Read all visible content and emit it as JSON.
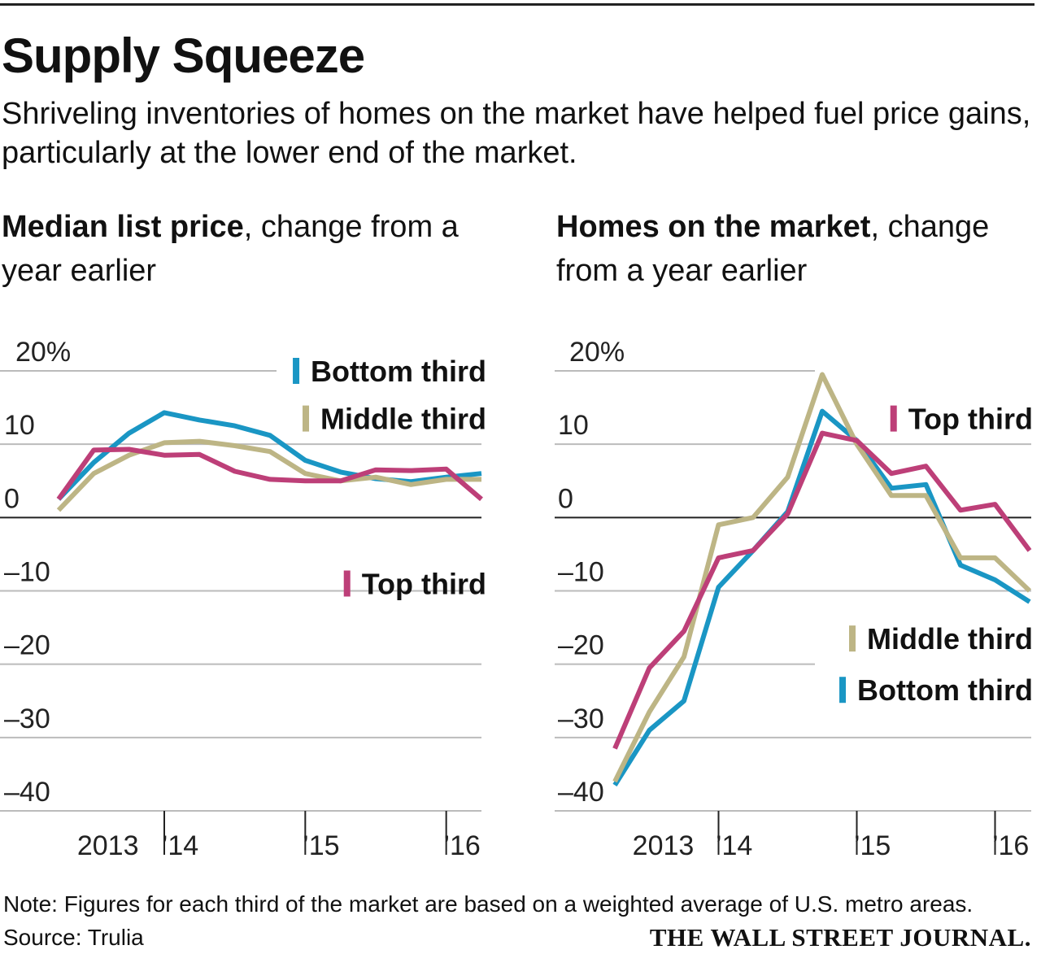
{
  "title": "Supply Squeeze",
  "subtitle": "Shriveling inventories of homes on the market have helped fuel price gains, particularly at the lower end of the market.",
  "colors": {
    "bottom": "#1a96c4",
    "middle": "#bdb585",
    "top": "#bd3f78",
    "grid": "#bbbbbb",
    "zero": "#222222"
  },
  "chart_data": [
    {
      "type": "line",
      "title_bold": "Median list price",
      "title_rest": ", change from a year earlier",
      "ylim": [
        -40,
        20
      ],
      "yticks": [
        {
          "v": 20,
          "label": "20%"
        },
        {
          "v": 10,
          "label": "10"
        },
        {
          "v": 0,
          "label": "0"
        },
        {
          "v": -10,
          "label": "–10"
        },
        {
          "v": -20,
          "label": "–20"
        },
        {
          "v": -30,
          "label": "–30"
        },
        {
          "v": -40,
          "label": "–40"
        }
      ],
      "x": [
        0,
        1,
        2,
        3,
        4,
        5,
        6,
        7,
        8,
        9,
        10,
        11,
        12
      ],
      "year_ticks": [
        3,
        7,
        11
      ],
      "xlabels": [
        {
          "at": 1.4,
          "label": "2013"
        },
        {
          "at": 3.45,
          "label": "’14"
        },
        {
          "at": 7.45,
          "label": "’15"
        },
        {
          "at": 11.45,
          "label": "’16"
        }
      ],
      "series": [
        {
          "name": "Bottom third",
          "key": "bottom",
          "values": [
            2.5,
            7.5,
            11.5,
            14.3,
            13.3,
            12.5,
            11.2,
            7.8,
            6.2,
            5.3,
            4.9,
            5.5,
            6.0
          ]
        },
        {
          "name": "Middle third",
          "key": "middle",
          "values": [
            1.0,
            6.0,
            8.5,
            10.2,
            10.4,
            9.8,
            9.0,
            6.0,
            5.0,
            5.5,
            4.5,
            5.2,
            5.2
          ]
        },
        {
          "name": "Top third",
          "key": "top",
          "values": [
            2.5,
            9.2,
            9.3,
            8.5,
            8.6,
            6.3,
            5.2,
            5.0,
            5.0,
            6.5,
            6.4,
            6.6,
            2.5
          ]
        }
      ],
      "legend": [
        {
          "name": "Bottom third",
          "key": "bottom",
          "y": 20,
          "anchor": "right"
        },
        {
          "name": "Middle third",
          "key": "middle",
          "y": 13.5,
          "anchor": "right"
        },
        {
          "name": "Top third",
          "key": "top",
          "y": -9,
          "anchor": "right"
        }
      ]
    },
    {
      "type": "line",
      "title_bold": "Homes on the market",
      "title_rest": ", change from a year earlier",
      "ylim": [
        -40,
        20
      ],
      "yticks": [
        {
          "v": 20,
          "label": "20%"
        },
        {
          "v": 10,
          "label": "10"
        },
        {
          "v": 0,
          "label": "0"
        },
        {
          "v": -10,
          "label": "–10"
        },
        {
          "v": -20,
          "label": "–20"
        },
        {
          "v": -30,
          "label": "–30"
        },
        {
          "v": -40,
          "label": "–40"
        }
      ],
      "x": [
        0,
        1,
        2,
        3,
        4,
        5,
        6,
        7,
        8,
        9,
        10,
        11,
        12
      ],
      "year_ticks": [
        3,
        7,
        11
      ],
      "xlabels": [
        {
          "at": 1.4,
          "label": "2013"
        },
        {
          "at": 3.45,
          "label": "’14"
        },
        {
          "at": 7.45,
          "label": "’15"
        },
        {
          "at": 11.45,
          "label": "’16"
        }
      ],
      "series": [
        {
          "name": "Bottom third",
          "key": "bottom",
          "values": [
            -36.5,
            -29,
            -25,
            -9.5,
            -4.5,
            0.8,
            14.5,
            10.5,
            4.0,
            4.5,
            -6.5,
            -8.5,
            -11.5
          ]
        },
        {
          "name": "Middle third",
          "key": "middle",
          "values": [
            -36,
            -26.5,
            -19,
            -1.0,
            0,
            5.5,
            19.5,
            10.0,
            3.0,
            3.0,
            -5.5,
            -5.5,
            -10.0
          ]
        },
        {
          "name": "Top third",
          "key": "top",
          "values": [
            -31.5,
            -20.5,
            -15.5,
            -5.5,
            -4.5,
            0.5,
            11.5,
            10.5,
            6.0,
            7.0,
            1.0,
            1.8,
            -4.5
          ]
        }
      ],
      "legend": [
        {
          "name": "Top third",
          "key": "top",
          "y": 13.5,
          "anchor": "right"
        },
        {
          "name": "Middle third",
          "key": "middle",
          "y": -16.5,
          "anchor": "right"
        },
        {
          "name": "Bottom third",
          "key": "bottom",
          "y": -23.5,
          "anchor": "right"
        }
      ]
    }
  ],
  "footer": {
    "note": "Note: Figures for each third of the market are based on a weighted average of U.S. metro areas.",
    "source": "Source: Trulia",
    "brand": "THE WALL STREET JOURNAL."
  }
}
